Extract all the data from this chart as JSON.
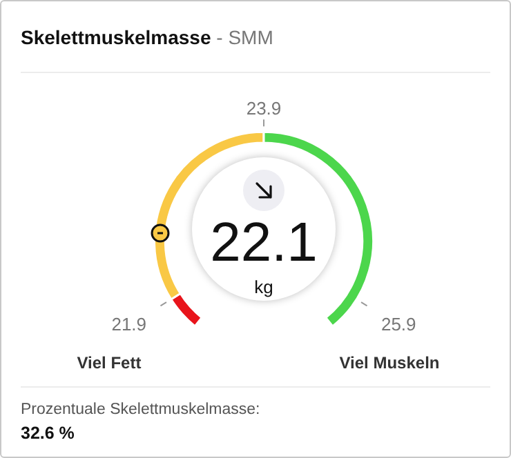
{
  "chart_data": {
    "type": "donut",
    "title": "Skelettmuskelmasse",
    "subtitle": "- SMM",
    "categories": [
      null,
      null,
      null
    ],
    "values": [
      6.7,
      43.3,
      50
    ],
    "colors": [
      "#e8141b",
      "#f9c845",
      "#4cd64c"
    ],
    "annotations": [
      "21.9",
      "23.9",
      "25.9",
      "22.1",
      "kg",
      "Viel Fett",
      "Viel Muskeln",
      "Prozentuale Skelettmuskelmasse:",
      "32.6 %"
    ]
  }
}
